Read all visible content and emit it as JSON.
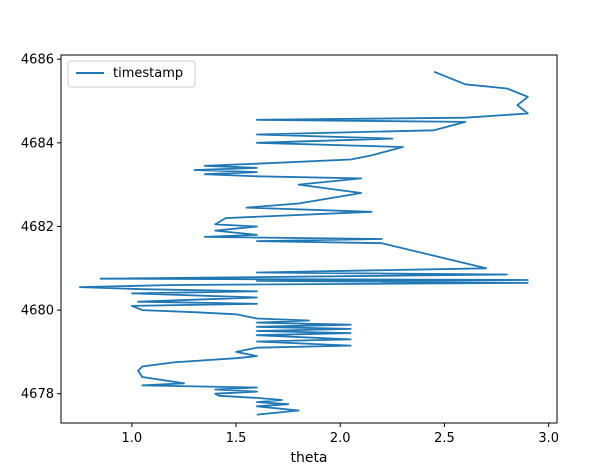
{
  "chart_data": {
    "type": "line",
    "title": "",
    "xlabel": "theta",
    "ylabel": "",
    "xlim": [
      0.66,
      3.04
    ],
    "ylim": [
      4677.3,
      4686.1
    ],
    "xticks": [
      1.0,
      1.5,
      2.0,
      2.5,
      3.0
    ],
    "xtick_labels": [
      "1.0",
      "1.5",
      "2.0",
      "2.5",
      "3.0"
    ],
    "yticks": [
      4678,
      4680,
      4682,
      4684,
      4686
    ],
    "ytick_labels": [
      "4678",
      "4680",
      "4682",
      "4684",
      "4686"
    ],
    "grid": false,
    "legend": {
      "position": "top-left",
      "entries": [
        "timestamp"
      ]
    },
    "series": [
      {
        "name": "timestamp",
        "color": "#1f77b4",
        "x": [
          1.6,
          1.8,
          1.6,
          1.75,
          1.6,
          1.72,
          1.6,
          1.42,
          1.4,
          1.6,
          1.4,
          1.6,
          1.05,
          1.25,
          1.05,
          1.03,
          1.05,
          1.2,
          1.5,
          1.6,
          1.5,
          1.6,
          2.05,
          1.6,
          2.05,
          1.6,
          2.05,
          1.6,
          2.05,
          1.6,
          2.05,
          1.6,
          1.85,
          1.6,
          1.5,
          1.3,
          1.05,
          1.0,
          1.6,
          1.03,
          1.6,
          1.0,
          1.6,
          1.05,
          0.75,
          1.2,
          2.9,
          1.6,
          2.9,
          0.85,
          2.8,
          1.6,
          2.7,
          2.45,
          2.2,
          1.6,
          2.2,
          1.35,
          1.6,
          1.4,
          1.6,
          1.4,
          1.45,
          2.15,
          1.55,
          1.8,
          2.1,
          1.8,
          2.1,
          1.6,
          1.35,
          1.6,
          1.3,
          1.6,
          1.35,
          1.6,
          2.05,
          2.15,
          2.3,
          1.6,
          2.25,
          1.6,
          2.45,
          2.6,
          1.6,
          2.6,
          2.9,
          2.85,
          2.9,
          2.8,
          2.6,
          2.5,
          2.45
        ],
        "y": [
          4677.5,
          4677.6,
          4677.7,
          4677.75,
          4677.8,
          4677.85,
          4677.9,
          4677.95,
          4678.0,
          4678.05,
          4678.1,
          4678.15,
          4678.2,
          4678.25,
          4678.4,
          4678.55,
          4678.65,
          4678.75,
          4678.85,
          4678.9,
          4679.0,
          4679.1,
          4679.15,
          4679.25,
          4679.3,
          4679.4,
          4679.45,
          4679.5,
          4679.55,
          4679.6,
          4679.65,
          4679.7,
          4679.75,
          4679.8,
          4679.9,
          4679.95,
          4680.0,
          4680.1,
          4680.15,
          4680.2,
          4680.3,
          4680.4,
          4680.45,
          4680.5,
          4680.55,
          4680.6,
          4680.65,
          4680.7,
          4680.72,
          4680.75,
          4680.85,
          4680.9,
          4681.0,
          4681.3,
          4681.6,
          4681.65,
          4681.7,
          4681.75,
          4681.8,
          4681.9,
          4682.0,
          4682.05,
          4682.2,
          4682.35,
          4682.45,
          4682.55,
          4682.8,
          4683.0,
          4683.15,
          4683.2,
          4683.25,
          4683.3,
          4683.35,
          4683.4,
          4683.45,
          4683.5,
          4683.6,
          4683.7,
          4683.9,
          4684.0,
          4684.1,
          4684.2,
          4684.3,
          4684.5,
          4684.55,
          4684.6,
          4684.7,
          4684.9,
          4685.1,
          4685.3,
          4685.4,
          4685.6,
          4685.7
        ]
      }
    ]
  }
}
